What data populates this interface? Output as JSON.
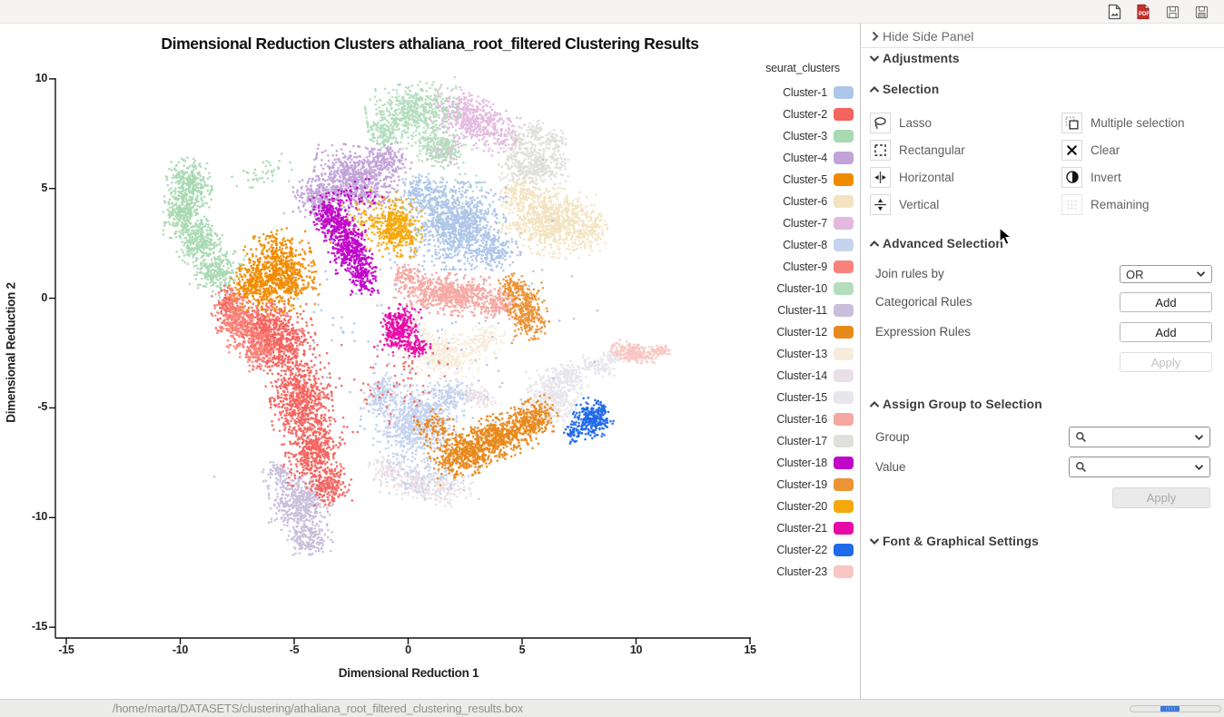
{
  "topbar": {
    "icons": [
      "export-image-icon",
      "export-pdf-icon",
      "save-icon",
      "save-as-icon"
    ]
  },
  "chart_data": {
    "type": "scatter",
    "title": "Dimensional Reduction Clusters athaliana_root_filtered Clustering Results",
    "xlabel": "Dimensional Reduction 1",
    "ylabel": "Dimensional Reduction 2",
    "xlim": [
      -15,
      15
    ],
    "ylim": [
      -15,
      10
    ],
    "x_ticks": [
      "-15",
      "-10",
      "-5",
      "0",
      "5",
      "10",
      "15"
    ],
    "y_ticks": [
      "10",
      "5",
      "0",
      "-5",
      "-10",
      "-15"
    ],
    "legend_title": "seurat_clusters",
    "legend_position": "right",
    "grid": false,
    "clusters": [
      {
        "name": "Cluster-1",
        "color": "#aec6e8",
        "blobs": [
          [
            2.2,
            3.3,
            2.0,
            1.9,
            0,
            950
          ],
          [
            0.8,
            4.7,
            1.2,
            0.9,
            -20,
            180
          ],
          [
            3.9,
            2.1,
            1.0,
            0.8,
            0,
            140
          ],
          [
            0,
            -1,
            8.5,
            7,
            0,
            170
          ]
        ]
      },
      {
        "name": "Cluster-2",
        "color": "#f4635d",
        "blobs": [
          [
            -5.6,
            -2.0,
            1.5,
            1.7,
            15,
            520
          ],
          [
            -4.7,
            -4.6,
            1.3,
            1.9,
            5,
            620
          ],
          [
            -4.1,
            -7.0,
            1.2,
            1.6,
            -8,
            430
          ],
          [
            -3.4,
            -8.6,
            0.9,
            0.8,
            0,
            160
          ],
          [
            -6.5,
            -1.3,
            1.2,
            1.2,
            0,
            280
          ],
          [
            -7.9,
            -0.3,
            0.7,
            0.9,
            0,
            130
          ],
          [
            -0.5,
            -3.8,
            2.8,
            2.2,
            0,
            80
          ]
        ]
      },
      {
        "name": "Cluster-3",
        "color": "#a9d9b2",
        "blobs": [
          [
            -9.6,
            5.2,
            0.9,
            1.15,
            10,
            300
          ],
          [
            -9.9,
            3.9,
            0.8,
            1.1,
            0,
            260
          ],
          [
            -9.2,
            2.6,
            0.9,
            1.1,
            -15,
            260
          ],
          [
            -8.4,
            1.3,
            0.95,
            1.05,
            -25,
            250
          ],
          [
            -6.3,
            5.7,
            1.7,
            0.8,
            10,
            40
          ]
        ]
      },
      {
        "name": "Cluster-4",
        "color": "#c2a3d9",
        "blobs": [
          [
            -2.3,
            5.4,
            1.8,
            1.45,
            -10,
            720
          ],
          [
            -4.0,
            4.6,
            1.0,
            1.0,
            0,
            200
          ],
          [
            -0.9,
            6.3,
            1.0,
            0.75,
            0,
            130
          ]
        ]
      },
      {
        "name": "Cluster-5",
        "color": "#f08b00",
        "blobs": [
          [
            -5.7,
            1.2,
            1.55,
            1.75,
            15,
            760
          ],
          [
            -6.9,
            0.5,
            0.9,
            1.0,
            0,
            170
          ]
        ]
      },
      {
        "name": "Cluster-6",
        "color": "#f3e3c0",
        "blobs": [
          [
            6.2,
            3.5,
            1.9,
            1.5,
            -10,
            760
          ],
          [
            7.9,
            3.2,
            0.8,
            1.0,
            0,
            140
          ],
          [
            4.8,
            4.7,
            0.9,
            0.7,
            0,
            120
          ]
        ]
      },
      {
        "name": "Cluster-7",
        "color": "#e3bade",
        "blobs": [
          [
            2.9,
            8.1,
            1.95,
            1.0,
            -28,
            530
          ],
          [
            1.6,
            6.7,
            0.8,
            0.6,
            0,
            90
          ]
        ]
      },
      {
        "name": "Cluster-8",
        "color": "#c5d3ee",
        "blobs": [
          [
            0.3,
            -5.7,
            1.75,
            1.65,
            0,
            720
          ],
          [
            -1.2,
            -4.4,
            0.85,
            0.95,
            0,
            150
          ],
          [
            1.8,
            -4.4,
            0.9,
            0.7,
            0,
            130
          ],
          [
            0.8,
            -8.0,
            2.2,
            1.1,
            0,
            110
          ]
        ]
      },
      {
        "name": "Cluster-9",
        "color": "#f9837b",
        "blobs": [
          [
            -7.5,
            -1.0,
            0.95,
            1.4,
            15,
            290
          ],
          [
            -6.6,
            -2.4,
            0.8,
            0.9,
            0,
            130
          ]
        ]
      },
      {
        "name": "Cluster-10",
        "color": "#b4ddbd",
        "blobs": [
          [
            0.2,
            8.5,
            1.95,
            1.25,
            8,
            540
          ],
          [
            1.4,
            6.9,
            1.3,
            0.9,
            -20,
            220
          ],
          [
            -1.0,
            7.5,
            0.8,
            0.65,
            0,
            110
          ],
          [
            1.6,
            4.2,
            2.3,
            1.7,
            0,
            90
          ]
        ]
      },
      {
        "name": "Cluster-11",
        "color": "#c9bedb",
        "blobs": [
          [
            -4.7,
            -9.3,
            1.35,
            1.3,
            0,
            430
          ],
          [
            -4.3,
            -10.9,
            0.95,
            0.9,
            0,
            180
          ],
          [
            -5.6,
            -8.1,
            0.75,
            0.6,
            0,
            80
          ]
        ]
      },
      {
        "name": "Cluster-12",
        "color": "#e8891c",
        "blobs": [
          [
            2.4,
            -7.1,
            1.35,
            1.0,
            20,
            430
          ],
          [
            4.0,
            -6.3,
            1.4,
            1.0,
            22,
            480
          ],
          [
            5.5,
            -5.5,
            1.0,
            0.85,
            25,
            260
          ],
          [
            1.2,
            -5.9,
            0.9,
            0.8,
            0,
            90
          ]
        ]
      },
      {
        "name": "Cluster-13",
        "color": "#f7ecdb",
        "blobs": [
          [
            1.5,
            -2.5,
            1.85,
            0.95,
            -5,
            430
          ],
          [
            3.4,
            -1.9,
            0.8,
            0.6,
            0,
            100
          ],
          [
            0.2,
            -1.3,
            0.7,
            0.5,
            0,
            60
          ]
        ]
      },
      {
        "name": "Cluster-14",
        "color": "#eadfe6",
        "blobs": [
          [
            0.8,
            -8.5,
            1.9,
            0.8,
            -8,
            330
          ],
          [
            3.0,
            -4.5,
            0.85,
            0.5,
            -20,
            100
          ],
          [
            -0.9,
            -7.7,
            0.8,
            0.6,
            0,
            80
          ]
        ]
      },
      {
        "name": "Cluster-15",
        "color": "#e7e6ec",
        "blobs": [
          [
            6.3,
            -4.6,
            1.25,
            1.25,
            0,
            430
          ],
          [
            7.0,
            -3.6,
            0.85,
            0.7,
            0,
            150
          ],
          [
            8.3,
            -3.1,
            0.8,
            0.35,
            -18,
            90
          ],
          [
            9.0,
            -2.7,
            0.5,
            0.25,
            -15,
            50
          ]
        ]
      },
      {
        "name": "Cluster-16",
        "color": "#f5a8a2",
        "blobs": [
          [
            1.7,
            0.2,
            2.2,
            0.9,
            -6,
            610
          ],
          [
            4.0,
            -0.3,
            0.9,
            0.7,
            0,
            150
          ],
          [
            -0.1,
            1.0,
            0.7,
            0.5,
            0,
            80
          ]
        ]
      },
      {
        "name": "Cluster-17",
        "color": "#dfdfdb",
        "blobs": [
          [
            5.5,
            6.0,
            1.45,
            1.0,
            0,
            390
          ],
          [
            4.8,
            7.2,
            0.5,
            0.6,
            0,
            70
          ],
          [
            5.6,
            7.5,
            0.5,
            0.6,
            0,
            70
          ],
          [
            6.4,
            7.1,
            0.5,
            0.55,
            0,
            70
          ]
        ]
      },
      {
        "name": "Cluster-18",
        "color": "#bf06c9",
        "blobs": [
          [
            -3.3,
            3.6,
            0.8,
            1.15,
            18,
            310
          ],
          [
            -2.6,
            2.2,
            0.9,
            1.2,
            15,
            350
          ],
          [
            -2.0,
            1.0,
            0.7,
            0.8,
            0,
            170
          ],
          [
            -2.1,
            4.7,
            1.1,
            0.7,
            0,
            40
          ]
        ]
      },
      {
        "name": "Cluster-19",
        "color": "#ec9335",
        "blobs": [
          [
            5.2,
            -0.6,
            0.85,
            1.25,
            10,
            310
          ],
          [
            4.6,
            0.5,
            0.6,
            0.6,
            0,
            90
          ]
        ]
      },
      {
        "name": "Cluster-20",
        "color": "#f5a80b",
        "blobs": [
          [
            -0.5,
            3.2,
            1.05,
            1.25,
            0,
            390
          ],
          [
            -1.9,
            3.6,
            1.6,
            1.3,
            0,
            90
          ]
        ]
      },
      {
        "name": "Cluster-21",
        "color": "#e70aa8",
        "blobs": [
          [
            -0.4,
            -1.4,
            0.8,
            1.05,
            -15,
            310
          ],
          [
            0.4,
            -2.2,
            0.55,
            0.5,
            0,
            70
          ]
        ]
      },
      {
        "name": "Cluster-22",
        "color": "#2069e9",
        "blobs": [
          [
            8.1,
            -5.5,
            0.85,
            0.8,
            -20,
            260
          ],
          [
            7.3,
            -6.1,
            0.45,
            0.5,
            0,
            60
          ]
        ]
      },
      {
        "name": "Cluster-23",
        "color": "#f8c7c3",
        "blobs": [
          [
            9.9,
            -2.5,
            0.95,
            0.4,
            -16,
            230
          ],
          [
            11.0,
            -2.4,
            0.45,
            0.3,
            0,
            50
          ]
        ]
      }
    ],
    "draw_order": [
      "Cluster-13",
      "Cluster-14",
      "Cluster-15",
      "Cluster-17",
      "Cluster-8",
      "Cluster-6",
      "Cluster-7",
      "Cluster-10",
      "Cluster-3",
      "Cluster-4",
      "Cluster-1",
      "Cluster-11",
      "Cluster-16",
      "Cluster-23",
      "Cluster-2",
      "Cluster-9",
      "Cluster-5",
      "Cluster-12",
      "Cluster-19",
      "Cluster-20",
      "Cluster-18",
      "Cluster-21",
      "Cluster-22"
    ]
  },
  "side_panel": {
    "hide_label": "Hide Side Panel",
    "adjustments_label": "Adjustments",
    "selection": {
      "title": "Selection",
      "tools": [
        {
          "label": "Lasso"
        },
        {
          "label": "Multiple selection"
        },
        {
          "label": "Rectangular"
        },
        {
          "label": "Clear"
        },
        {
          "label": "Horizontal"
        },
        {
          "label": "Invert"
        },
        {
          "label": "Vertical"
        },
        {
          "label": "Remaining"
        }
      ]
    },
    "advanced": {
      "title": "Advanced Selection",
      "join_label": "Join rules by",
      "join_value": "OR",
      "categorical_label": "Categorical Rules",
      "expression_label": "Expression Rules",
      "add_label": "Add",
      "apply_label": "Apply"
    },
    "assign": {
      "title": "Assign Group to Selection",
      "group_label": "Group",
      "value_label": "Value",
      "group_value": "",
      "value_value": "",
      "apply_label": "Apply"
    },
    "font_settings": {
      "title": "Font & Graphical Settings"
    }
  },
  "status_bar": {
    "path": "/home/marta/DATASETS/clustering/athaliana_root_filtered_clustering_results.box"
  }
}
